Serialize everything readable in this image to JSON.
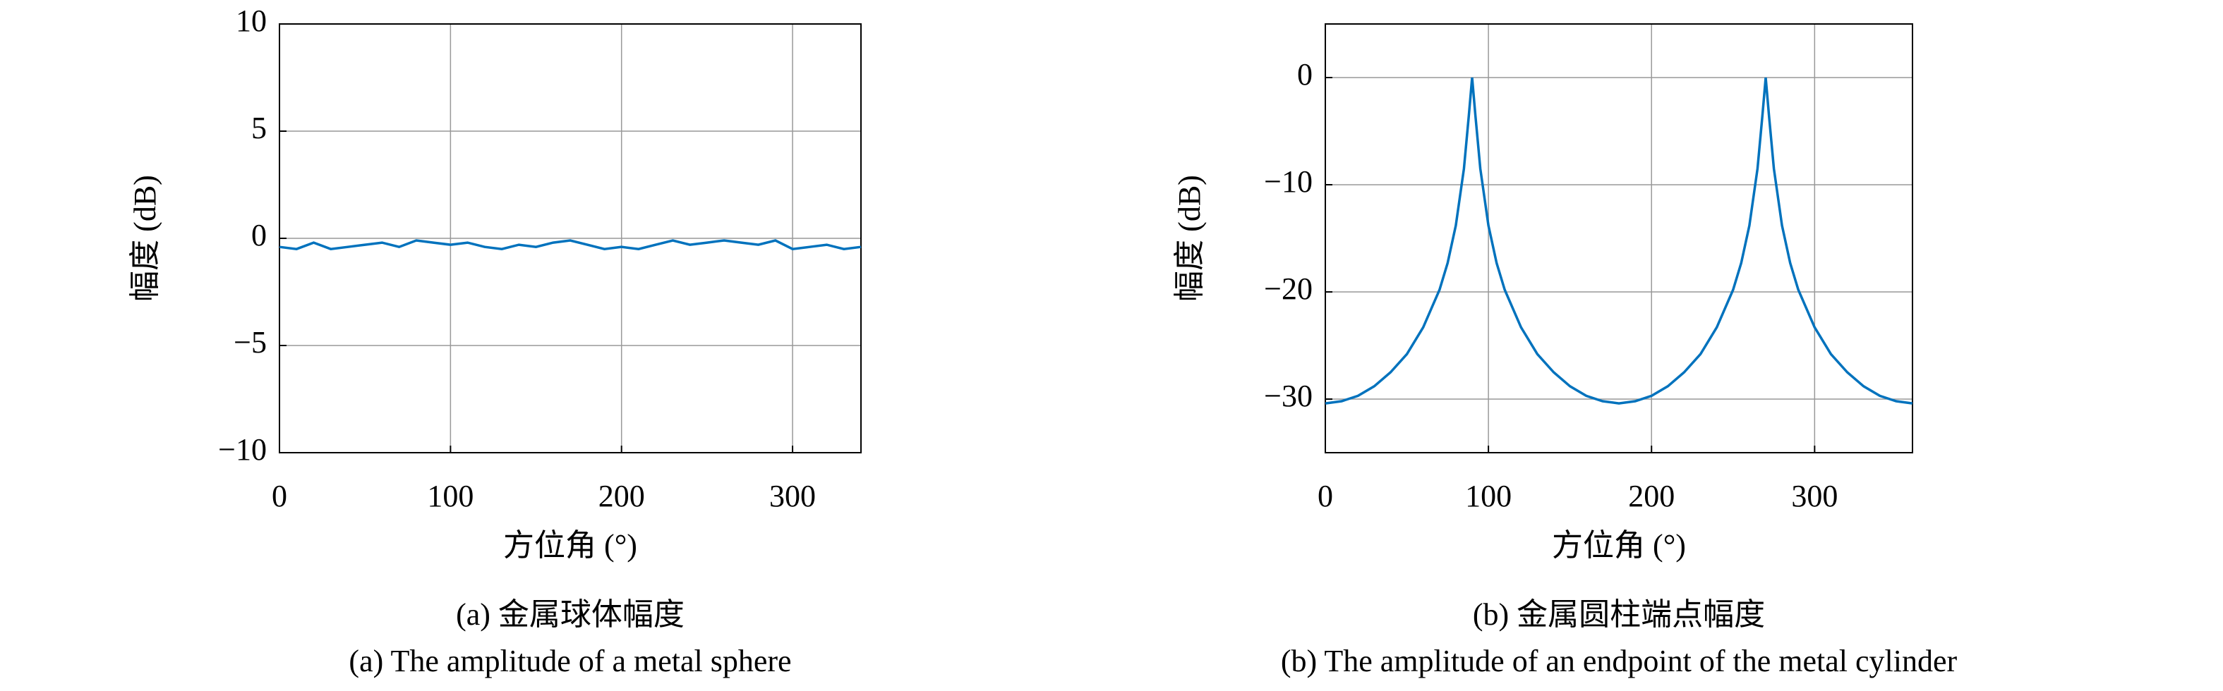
{
  "chart_data": [
    {
      "type": "line",
      "caption": "(a) 金属球体幅度",
      "caption_en": "(a) The amplitude of a metal sphere",
      "xlabel": "方位角 (°)",
      "ylabel": "幅度 (dB)",
      "color": "#0072bd",
      "grid": true,
      "x": [
        0,
        10,
        20,
        30,
        40,
        50,
        60,
        70,
        80,
        90,
        100,
        110,
        120,
        130,
        140,
        150,
        160,
        170,
        180,
        190,
        200,
        210,
        220,
        230,
        240,
        250,
        260,
        270,
        280,
        290,
        300,
        310,
        320,
        330,
        340
      ],
      "values": [
        -0.4,
        -0.5,
        -0.2,
        -0.5,
        -0.4,
        -0.3,
        -0.2,
        -0.4,
        -0.1,
        -0.2,
        -0.3,
        -0.2,
        -0.4,
        -0.5,
        -0.3,
        -0.4,
        -0.2,
        -0.1,
        -0.3,
        -0.5,
        -0.4,
        -0.5,
        -0.3,
        -0.1,
        -0.3,
        -0.2,
        -0.1,
        -0.2,
        -0.3,
        -0.1,
        -0.5,
        -0.4,
        -0.3,
        -0.5,
        -0.4
      ],
      "xlim": [
        0,
        340
      ],
      "xticks": [
        0,
        100,
        200,
        300
      ],
      "ylim": [
        -10,
        10
      ],
      "yticks": [
        10,
        5,
        0,
        {
          "value": -5,
          "label": "−5"
        },
        {
          "value": -10,
          "label": "−10"
        }
      ]
    },
    {
      "type": "line",
      "caption": "(b) 金属圆柱端点幅度",
      "caption_en": "(b) The amplitude of an endpoint of the metal cylinder",
      "xlabel": "方位角 (°)",
      "ylabel": "幅度 (dB)",
      "color": "#0072bd",
      "grid": true,
      "x": [
        0,
        10,
        20,
        30,
        40,
        50,
        60,
        70,
        75,
        80,
        85,
        88,
        90,
        92,
        95,
        100,
        105,
        110,
        120,
        130,
        140,
        150,
        160,
        170,
        180,
        190,
        200,
        210,
        220,
        230,
        240,
        250,
        255,
        260,
        265,
        268,
        270,
        272,
        275,
        280,
        285,
        290,
        300,
        310,
        320,
        330,
        340,
        350,
        360
      ],
      "values": [
        -30.4,
        -30.2,
        -29.7,
        -28.8,
        -27.5,
        -25.8,
        -23.3,
        -19.8,
        -17.3,
        -13.8,
        -8.5,
        -3.5,
        0,
        -3.5,
        -8.5,
        -13.8,
        -17.3,
        -19.8,
        -23.3,
        -25.8,
        -27.5,
        -28.8,
        -29.7,
        -30.2,
        -30.4,
        -30.2,
        -29.7,
        -28.8,
        -27.5,
        -25.8,
        -23.3,
        -19.8,
        -17.3,
        -13.8,
        -8.5,
        -3.5,
        0,
        -3.5,
        -8.5,
        -13.8,
        -17.3,
        -19.8,
        -23.3,
        -25.8,
        -27.5,
        -28.8,
        -29.7,
        -30.2,
        -30.4
      ],
      "xlim": [
        0,
        360
      ],
      "xticks": [
        0,
        100,
        200,
        300
      ],
      "ylim": [
        -35,
        5
      ],
      "yticks": [
        0,
        {
          "value": -10,
          "label": "−10"
        },
        {
          "value": -20,
          "label": "−20"
        },
        {
          "value": -30,
          "label": "−30"
        }
      ]
    }
  ]
}
